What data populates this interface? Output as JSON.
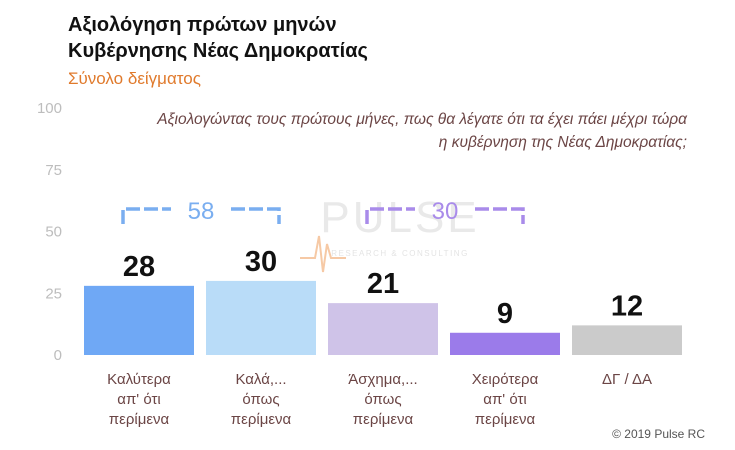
{
  "title_lines": [
    "Αξιολόγηση πρώτων μηνών",
    "Κυβέρνησης Νέας Δημοκρατίας"
  ],
  "subtitle": "Σύνολο δείγματος",
  "question_lines": [
    "Αξιολογώντας τους πρώτους μήνες, πως θα λέγατε ότι τα έχει πάει μέχρι τώρα",
    "η κυβέρνηση της Νέας Δημοκρατίας;"
  ],
  "watermark": {
    "main": "PULSE",
    "sub": "RESEARCH & CONSULTING"
  },
  "copyright": "© 2019 Pulse RC",
  "chart_data": {
    "type": "bar",
    "categories": [
      [
        "Καλύτερα",
        "απ' ότι",
        "περίμενα"
      ],
      [
        "Καλά,...",
        "όπως",
        "περίμενα"
      ],
      [
        "Άσχημα,...",
        "όπως",
        "περίμενα"
      ],
      [
        "Χειρότερα",
        "απ' ότι",
        "περίμενα"
      ],
      [
        "ΔΓ / ΔΑ"
      ]
    ],
    "values": [
      28,
      30,
      21,
      9,
      12
    ],
    "colors": [
      "#6fa8f5",
      "#b9dcf8",
      "#cfc3e8",
      "#9b7bea",
      "#cbcbcb"
    ],
    "ylim": [
      0,
      100
    ],
    "yticks": [
      0,
      25,
      50,
      75,
      100
    ],
    "grid": false,
    "groups": [
      {
        "label": "58",
        "color": "#7aaef0",
        "from": 0,
        "to": 1
      },
      {
        "label": "30",
        "color": "#a98bea",
        "from": 2,
        "to": 3
      }
    ]
  }
}
